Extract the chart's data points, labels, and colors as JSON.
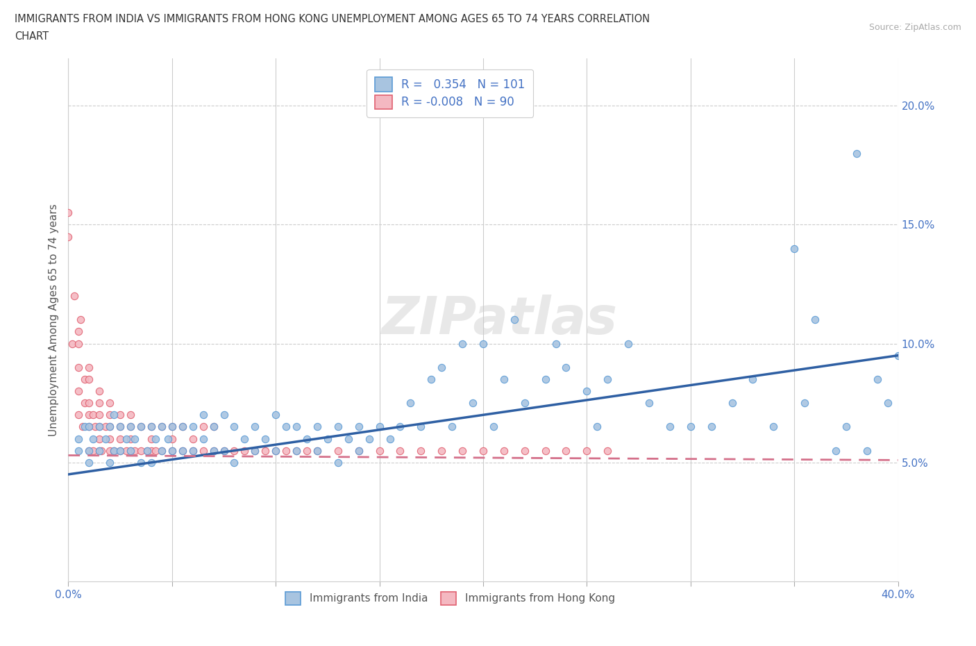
{
  "title_line1": "IMMIGRANTS FROM INDIA VS IMMIGRANTS FROM HONG KONG UNEMPLOYMENT AMONG AGES 65 TO 74 YEARS CORRELATION",
  "title_line2": "CHART",
  "source": "Source: ZipAtlas.com",
  "ylabel": "Unemployment Among Ages 65 to 74 years",
  "xlim": [
    0.0,
    0.4
  ],
  "ylim": [
    0.0,
    0.22
  ],
  "yticks": [
    0.05,
    0.1,
    0.15,
    0.2
  ],
  "ytick_labels": [
    "5.0%",
    "10.0%",
    "15.0%",
    "20.0%"
  ],
  "xticks": [
    0.0,
    0.05,
    0.1,
    0.15,
    0.2,
    0.25,
    0.3,
    0.35,
    0.4
  ],
  "india_R": 0.354,
  "india_N": 101,
  "hk_R": -0.008,
  "hk_N": 90,
  "india_color": "#a8c4e0",
  "india_edge_color": "#5b9bd5",
  "hk_color": "#f4b8c1",
  "hk_edge_color": "#e06070",
  "india_line_color": "#2e5fa3",
  "hk_line_color": "#d4708a",
  "watermark": "ZIPatlas",
  "india_trend_x0": 0.0,
  "india_trend_y0": 0.045,
  "india_trend_x1": 0.4,
  "india_trend_y1": 0.095,
  "hk_trend_x0": 0.0,
  "hk_trend_y0": 0.053,
  "hk_trend_x1": 0.4,
  "hk_trend_y1": 0.051,
  "india_scatter_x": [
    0.005,
    0.005,
    0.008,
    0.01,
    0.01,
    0.01,
    0.012,
    0.015,
    0.015,
    0.018,
    0.02,
    0.02,
    0.022,
    0.022,
    0.025,
    0.025,
    0.028,
    0.03,
    0.03,
    0.032,
    0.035,
    0.035,
    0.038,
    0.04,
    0.04,
    0.042,
    0.045,
    0.045,
    0.048,
    0.05,
    0.05,
    0.055,
    0.055,
    0.06,
    0.06,
    0.065,
    0.065,
    0.07,
    0.07,
    0.075,
    0.075,
    0.08,
    0.08,
    0.085,
    0.09,
    0.09,
    0.095,
    0.1,
    0.1,
    0.105,
    0.11,
    0.11,
    0.115,
    0.12,
    0.12,
    0.125,
    0.13,
    0.13,
    0.135,
    0.14,
    0.14,
    0.145,
    0.15,
    0.155,
    0.16,
    0.165,
    0.17,
    0.175,
    0.18,
    0.185,
    0.19,
    0.195,
    0.2,
    0.205,
    0.21,
    0.215,
    0.22,
    0.23,
    0.235,
    0.24,
    0.25,
    0.255,
    0.26,
    0.27,
    0.28,
    0.29,
    0.3,
    0.31,
    0.32,
    0.33,
    0.34,
    0.35,
    0.355,
    0.36,
    0.37,
    0.375,
    0.38,
    0.385,
    0.39,
    0.395,
    0.4
  ],
  "india_scatter_y": [
    0.055,
    0.06,
    0.065,
    0.05,
    0.055,
    0.065,
    0.06,
    0.055,
    0.065,
    0.06,
    0.05,
    0.065,
    0.055,
    0.07,
    0.055,
    0.065,
    0.06,
    0.055,
    0.065,
    0.06,
    0.05,
    0.065,
    0.055,
    0.05,
    0.065,
    0.06,
    0.055,
    0.065,
    0.06,
    0.055,
    0.065,
    0.055,
    0.065,
    0.055,
    0.065,
    0.06,
    0.07,
    0.055,
    0.065,
    0.055,
    0.07,
    0.05,
    0.065,
    0.06,
    0.055,
    0.065,
    0.06,
    0.055,
    0.07,
    0.065,
    0.055,
    0.065,
    0.06,
    0.055,
    0.065,
    0.06,
    0.05,
    0.065,
    0.06,
    0.055,
    0.065,
    0.06,
    0.065,
    0.06,
    0.065,
    0.075,
    0.065,
    0.085,
    0.09,
    0.065,
    0.1,
    0.075,
    0.1,
    0.065,
    0.085,
    0.11,
    0.075,
    0.085,
    0.1,
    0.09,
    0.08,
    0.065,
    0.085,
    0.1,
    0.075,
    0.065,
    0.065,
    0.065,
    0.075,
    0.085,
    0.065,
    0.14,
    0.075,
    0.11,
    0.055,
    0.065,
    0.18,
    0.055,
    0.085,
    0.075,
    0.095
  ],
  "hk_scatter_x": [
    0.0,
    0.0,
    0.002,
    0.003,
    0.005,
    0.005,
    0.005,
    0.005,
    0.005,
    0.006,
    0.007,
    0.008,
    0.008,
    0.01,
    0.01,
    0.01,
    0.01,
    0.01,
    0.01,
    0.012,
    0.012,
    0.013,
    0.015,
    0.015,
    0.015,
    0.015,
    0.015,
    0.015,
    0.016,
    0.018,
    0.02,
    0.02,
    0.02,
    0.02,
    0.02,
    0.022,
    0.025,
    0.025,
    0.025,
    0.025,
    0.028,
    0.03,
    0.03,
    0.03,
    0.03,
    0.032,
    0.035,
    0.035,
    0.038,
    0.04,
    0.04,
    0.04,
    0.042,
    0.045,
    0.045,
    0.05,
    0.05,
    0.05,
    0.055,
    0.055,
    0.06,
    0.06,
    0.065,
    0.065,
    0.07,
    0.07,
    0.075,
    0.08,
    0.085,
    0.09,
    0.095,
    0.1,
    0.105,
    0.11,
    0.115,
    0.12,
    0.13,
    0.14,
    0.15,
    0.16,
    0.17,
    0.18,
    0.19,
    0.2,
    0.21,
    0.22,
    0.23,
    0.24,
    0.25,
    0.26
  ],
  "hk_scatter_y": [
    0.145,
    0.155,
    0.1,
    0.12,
    0.07,
    0.08,
    0.09,
    0.1,
    0.105,
    0.11,
    0.065,
    0.075,
    0.085,
    0.055,
    0.065,
    0.07,
    0.075,
    0.085,
    0.09,
    0.055,
    0.07,
    0.065,
    0.055,
    0.06,
    0.065,
    0.07,
    0.075,
    0.08,
    0.055,
    0.065,
    0.055,
    0.06,
    0.065,
    0.07,
    0.075,
    0.055,
    0.055,
    0.06,
    0.065,
    0.07,
    0.055,
    0.055,
    0.06,
    0.065,
    0.07,
    0.055,
    0.055,
    0.065,
    0.055,
    0.055,
    0.06,
    0.065,
    0.055,
    0.055,
    0.065,
    0.055,
    0.06,
    0.065,
    0.055,
    0.065,
    0.055,
    0.06,
    0.055,
    0.065,
    0.055,
    0.065,
    0.055,
    0.055,
    0.055,
    0.055,
    0.055,
    0.055,
    0.055,
    0.055,
    0.055,
    0.055,
    0.055,
    0.055,
    0.055,
    0.055,
    0.055,
    0.055,
    0.055,
    0.055,
    0.055,
    0.055,
    0.055,
    0.055,
    0.055,
    0.055
  ]
}
